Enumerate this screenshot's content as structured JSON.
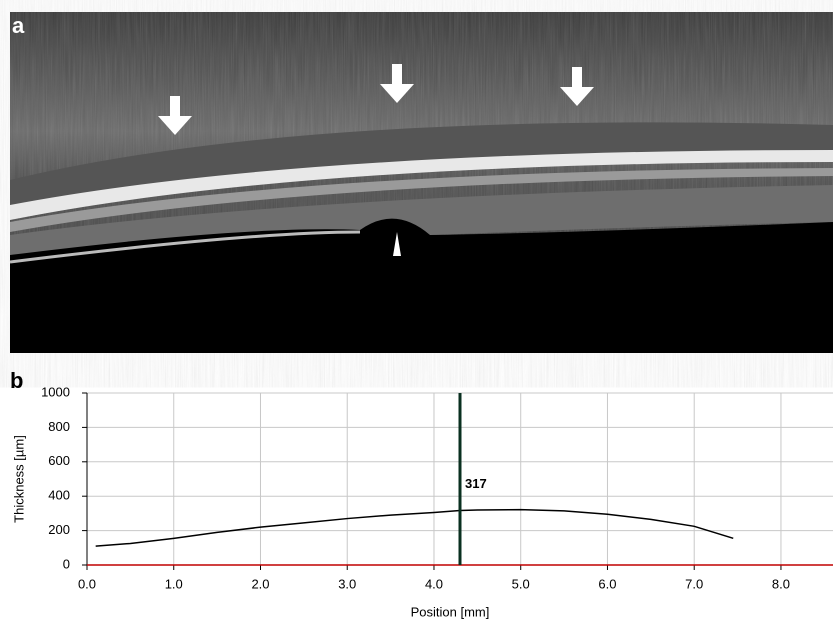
{
  "image_panel": {
    "label": "a"
  },
  "chart_data": {
    "type": "line",
    "panel_label": "b",
    "x_label": "Position [mm]",
    "y_label": "Thickness [µm]",
    "x": [
      0.1,
      0.5,
      1.0,
      1.5,
      2.0,
      2.5,
      3.0,
      3.5,
      4.0,
      4.3,
      4.5,
      5.0,
      5.5,
      6.0,
      6.5,
      7.0,
      7.45
    ],
    "values": [
      110,
      125,
      155,
      190,
      220,
      245,
      270,
      290,
      305,
      317,
      320,
      322,
      315,
      295,
      265,
      225,
      155
    ],
    "color": "#000000",
    "baseline_color": "#c00000",
    "marker_color": "#0a3020",
    "marker": {
      "x": 4.3,
      "value": 317
    },
    "xlim": [
      0,
      8.6
    ],
    "ylim": [
      0,
      1000
    ],
    "xticks": [
      {
        "value": 0,
        "label": "0.0"
      },
      {
        "value": 1,
        "label": "1.0"
      },
      {
        "value": 2,
        "label": "2.0"
      },
      {
        "value": 3,
        "label": "3.0"
      },
      {
        "value": 4,
        "label": "4.0"
      },
      {
        "value": 5,
        "label": "5.0"
      },
      {
        "value": 6,
        "label": "6.0"
      },
      {
        "value": 7,
        "label": "7.0"
      },
      {
        "value": 8,
        "label": "8.0"
      }
    ],
    "yticks": [
      0,
      200,
      400,
      600,
      800,
      1000
    ],
    "grid": true
  }
}
